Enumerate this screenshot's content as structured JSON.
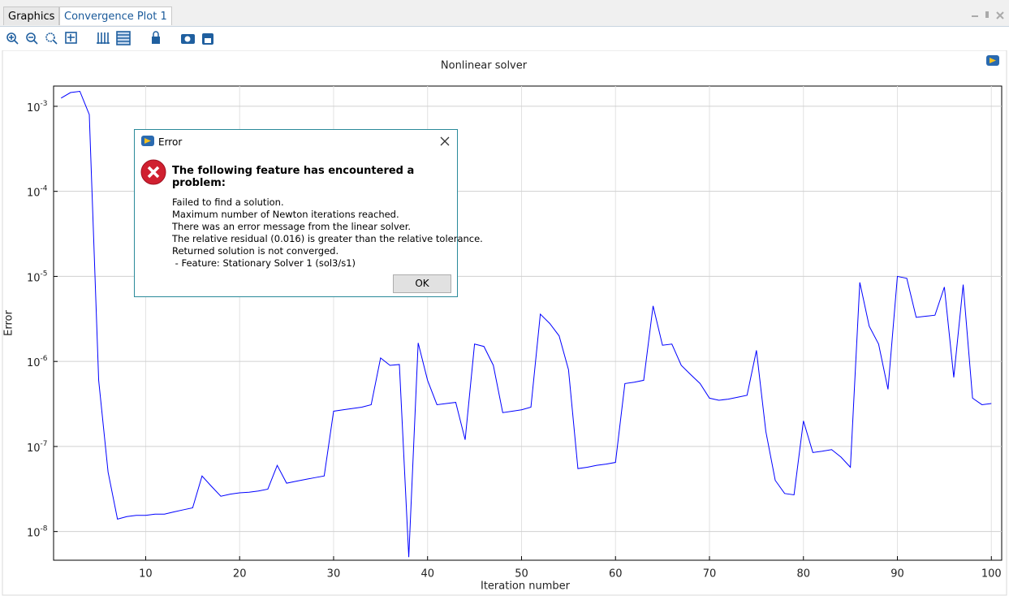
{
  "tabs": [
    "Graphics",
    "Convergence Plot 1"
  ],
  "chart_data": {
    "type": "line",
    "title": "Nonlinear solver",
    "x_label": "Iteration number",
    "y_label": "Error",
    "log_y": true,
    "grid": true,
    "color": "#0000ff",
    "x": [
      1,
      2,
      3,
      4,
      5,
      6,
      7,
      8,
      9,
      10,
      11,
      12,
      13,
      14,
      15,
      16,
      17,
      18,
      19,
      20,
      21,
      22,
      23,
      24,
      25,
      26,
      27,
      28,
      29,
      30,
      31,
      32,
      33,
      34,
      35,
      36,
      37,
      38,
      39,
      40,
      41,
      42,
      43,
      44,
      45,
      46,
      47,
      48,
      49,
      50,
      51,
      52,
      53,
      54,
      55,
      56,
      57,
      58,
      59,
      60,
      61,
      62,
      63,
      64,
      65,
      66,
      67,
      68,
      69,
      70,
      71,
      72,
      73,
      74,
      75,
      76,
      77,
      78,
      79,
      80,
      81,
      82,
      83,
      84,
      85,
      86,
      87,
      88,
      89,
      90,
      91,
      92,
      93,
      94,
      95,
      96,
      97,
      98,
      99,
      100
    ],
    "values": [
      0.00125,
      0.00145,
      0.0015,
      0.0008,
      6e-07,
      5e-08,
      1.4e-08,
      1.5e-08,
      1.55e-08,
      1.55e-08,
      1.6e-08,
      1.6e-08,
      1.7e-08,
      1.8e-08,
      1.9e-08,
      4.5e-08,
      3.4e-08,
      2.6e-08,
      2.75e-08,
      2.85e-08,
      2.9e-08,
      3e-08,
      3.15e-08,
      6e-08,
      3.7e-08,
      3.9e-08,
      4.1e-08,
      4.3e-08,
      4.5e-08,
      2.6e-07,
      2.7e-07,
      2.8e-07,
      2.9e-07,
      3.1e-07,
      1.1e-06,
      9e-07,
      9.2e-07,
      5e-09,
      1.65e-06,
      6e-07,
      3.1e-07,
      3.2e-07,
      3.3e-07,
      1.2e-07,
      1.6e-06,
      1.5e-06,
      9e-07,
      2.5e-07,
      2.6e-07,
      2.7e-07,
      2.9e-07,
      3.6e-06,
      2.8e-06,
      2e-06,
      8e-07,
      5.5e-08,
      5.7e-08,
      6e-08,
      6.2e-08,
      6.5e-08,
      5.5e-07,
      5.7e-07,
      6e-07,
      4.5e-06,
      1.55e-06,
      1.6e-06,
      9e-07,
      7e-07,
      5.5e-07,
      3.7e-07,
      3.5e-07,
      3.6e-07,
      3.8e-07,
      4e-07,
      1.35e-06,
      1.5e-07,
      4e-08,
      2.8e-08,
      2.7e-08,
      2e-07,
      8.5e-08,
      8.8e-08,
      9.2e-08,
      7.5e-08,
      5.7e-08,
      8.5e-06,
      2.6e-06,
      1.6e-06,
      4.7e-07,
      1e-05,
      9.5e-06,
      3.3e-06,
      3.4e-06,
      3.5e-06,
      7.5e-06,
      6.5e-07,
      8e-06,
      3.7e-07,
      3.1e-07,
      3.2e-07
    ],
    "xlim": [
      0.2,
      101.1
    ],
    "xticks": [
      10,
      20,
      30,
      40,
      50,
      60,
      70,
      80,
      90,
      100
    ],
    "ylim": [
      4.6e-09,
      0.00173
    ],
    "yticks": [
      {
        "value": 1e-08,
        "label": "10",
        "exponent": "-8"
      },
      {
        "value": 1e-07,
        "label": "10",
        "exponent": "-7"
      },
      {
        "value": 1e-06,
        "label": "10",
        "exponent": "-6"
      },
      {
        "value": 1e-05,
        "label": "10",
        "exponent": "-5"
      },
      {
        "value": 0.0001,
        "label": "10",
        "exponent": "-4"
      },
      {
        "value": 0.001,
        "label": "10",
        "exponent": "-3"
      }
    ]
  },
  "dialog": {
    "title": "Error",
    "heading": "The following feature has encountered a problem:",
    "message": [
      "Failed to find a solution.",
      "Maximum number of Newton iterations reached.",
      "There was an error message from the linear solver.",
      "The relative residual (0.016) is greater than the relative tolerance.",
      "Returned solution is not converged.",
      " - Feature: Stationary Solver 1 (sol3/s1)"
    ],
    "button": "OK"
  }
}
